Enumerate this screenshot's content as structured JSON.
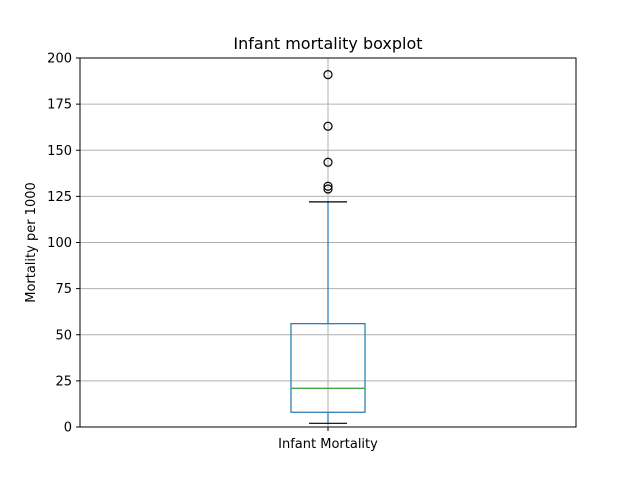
{
  "chart_data": {
    "type": "boxplot",
    "title": "Infant mortality boxplot",
    "xlabel": "",
    "ylabel": "Mortality per 1000",
    "ylim": [
      0,
      200
    ],
    "yticks": [
      0,
      25,
      50,
      75,
      100,
      125,
      150,
      175,
      200
    ],
    "grid": true,
    "categories": [
      "Infant Mortality"
    ],
    "boxes": [
      {
        "category": "Infant Mortality",
        "whisker_low": 2,
        "q1": 8,
        "median": 21,
        "q3": 56,
        "whisker_high": 122,
        "outliers": [
          129,
          130.5,
          143.5,
          163,
          191
        ]
      }
    ],
    "colors": {
      "box": "#1f77b4",
      "median": "#2ca02c",
      "whisker": "#1f77b4",
      "cap": "#000000",
      "outlier": "#000000",
      "grid": "#b0b0b0"
    }
  }
}
